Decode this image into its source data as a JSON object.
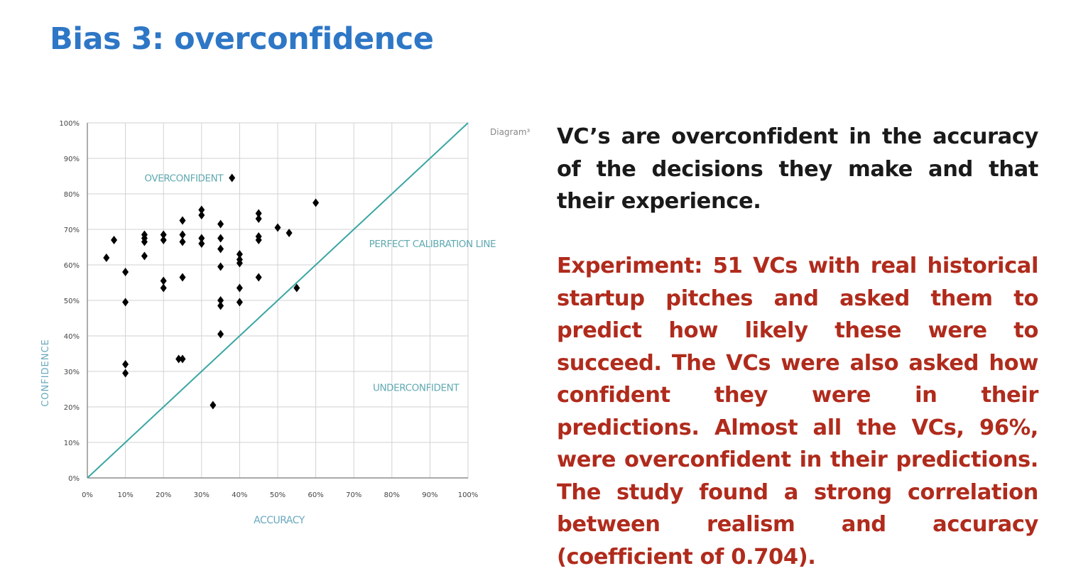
{
  "colors": {
    "title": "#2e77c6",
    "body_text": "#1a1a1a",
    "highlight_text": "#b02b1c",
    "calibration_line": "#3aa6a3",
    "region_label": "#5fa9b1",
    "axis_label": "#6aa9bd",
    "point": "#000000",
    "grid": "#d2d2d2"
  },
  "slide": {
    "title": "Bias 3: overconfidence",
    "paragraph1": "VC’s are overconfident in the accuracy of the decisions they make and that their experience.",
    "paragraph2": "Experiment: 51 VCs with real historical startup pitches and asked them to predict how likely these were to succeed. The VCs were also asked how confident they were in their predictions. Almost all the VCs, 96%, were overconfident in their predictions. The study found a strong correlation between realism and accuracy (coefficient of 0.704)."
  },
  "chart_data": {
    "type": "scatter",
    "marker": "diamond",
    "corner_label": "Diagram³",
    "xlabel": "ACCURACY",
    "ylabel": "CONFIDENCE",
    "xlim": [
      0,
      100
    ],
    "ylim": [
      0,
      100
    ],
    "x_ticks": [
      0,
      10,
      20,
      30,
      40,
      50,
      60,
      70,
      80,
      90,
      100
    ],
    "y_ticks": [
      0,
      10,
      20,
      30,
      40,
      50,
      60,
      70,
      80,
      90,
      100
    ],
    "x_tick_labels": [
      "0%",
      "10%",
      "20%",
      "30%",
      "40%",
      "50%",
      "60%",
      "70%",
      "80%",
      "90%",
      "100%"
    ],
    "y_tick_labels": [
      "0%",
      "10%",
      "20%",
      "30%",
      "40%",
      "50%",
      "60%",
      "70%",
      "80%",
      "90%",
      "100%"
    ],
    "grid": true,
    "reference_line": {
      "label": "PERFECT CALIBRATION LINE",
      "points": [
        [
          0,
          0
        ],
        [
          100,
          100
        ]
      ]
    },
    "region_labels": [
      {
        "text": "OVERCONFIDENT",
        "x": 15,
        "y": 83.5
      },
      {
        "text": "PERFECT CALIBRATION LINE",
        "x": 74,
        "y": 65
      },
      {
        "text": "UNDERCONFIDENT",
        "x": 75,
        "y": 24.5
      }
    ],
    "points": [
      {
        "x": 5,
        "y": 62
      },
      {
        "x": 7,
        "y": 67
      },
      {
        "x": 10,
        "y": 58
      },
      {
        "x": 10,
        "y": 49.5
      },
      {
        "x": 10,
        "y": 32
      },
      {
        "x": 10,
        "y": 29.5
      },
      {
        "x": 15,
        "y": 68.5
      },
      {
        "x": 15,
        "y": 67.5
      },
      {
        "x": 15,
        "y": 66.5
      },
      {
        "x": 15,
        "y": 62.5
      },
      {
        "x": 20,
        "y": 68.5
      },
      {
        "x": 20,
        "y": 67
      },
      {
        "x": 20,
        "y": 55.5
      },
      {
        "x": 20,
        "y": 53.5
      },
      {
        "x": 24,
        "y": 33.5
      },
      {
        "x": 25,
        "y": 33.5
      },
      {
        "x": 25,
        "y": 72.5
      },
      {
        "x": 25,
        "y": 68.5
      },
      {
        "x": 25,
        "y": 66.5
      },
      {
        "x": 25,
        "y": 56.5
      },
      {
        "x": 30,
        "y": 75.5
      },
      {
        "x": 30,
        "y": 74
      },
      {
        "x": 30,
        "y": 67.5
      },
      {
        "x": 30,
        "y": 66
      },
      {
        "x": 33,
        "y": 20.5
      },
      {
        "x": 35,
        "y": 71.5
      },
      {
        "x": 35,
        "y": 67.5
      },
      {
        "x": 35,
        "y": 64.5
      },
      {
        "x": 35,
        "y": 59.5
      },
      {
        "x": 35,
        "y": 50
      },
      {
        "x": 35,
        "y": 48.5
      },
      {
        "x": 35,
        "y": 40.5
      },
      {
        "x": 38,
        "y": 84.5
      },
      {
        "x": 40,
        "y": 63
      },
      {
        "x": 40,
        "y": 61.5
      },
      {
        "x": 40,
        "y": 60.5
      },
      {
        "x": 40,
        "y": 53.5
      },
      {
        "x": 40,
        "y": 49.5
      },
      {
        "x": 45,
        "y": 74.5
      },
      {
        "x": 45,
        "y": 73
      },
      {
        "x": 45,
        "y": 68
      },
      {
        "x": 45,
        "y": 67
      },
      {
        "x": 45,
        "y": 56.5
      },
      {
        "x": 50,
        "y": 70.5
      },
      {
        "x": 53,
        "y": 69
      },
      {
        "x": 55,
        "y": 53.5
      },
      {
        "x": 60,
        "y": 77.5
      }
    ]
  }
}
